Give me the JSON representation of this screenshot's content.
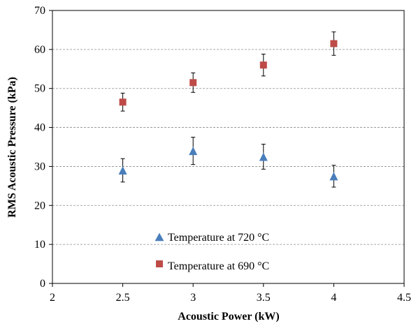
{
  "chart_data": {
    "type": "scatter",
    "title": "",
    "xlabel": "Acoustic Power (kW)",
    "ylabel": "RMS Acoustic Pressure (kPa)",
    "xlim": [
      2,
      4.5
    ],
    "ylim": [
      0,
      70
    ],
    "x_ticks": [
      2,
      2.5,
      3,
      3.5,
      4,
      4.5
    ],
    "x_tick_labels": [
      "2",
      "2.5",
      "3",
      "3.5",
      "4",
      "4.5"
    ],
    "y_ticks": [
      0,
      10,
      20,
      30,
      40,
      50,
      60,
      70
    ],
    "y_tick_labels": [
      "0",
      "10",
      "20",
      "30",
      "40",
      "50",
      "60",
      "70"
    ],
    "grid": "horizontal dashed",
    "legend_position": "lower-middle",
    "series": [
      {
        "name": "Temperature at 720 °C",
        "marker": "triangle",
        "color": "#4a7ebb",
        "x": [
          2.5,
          3,
          3.5,
          4
        ],
        "y": [
          29,
          34,
          32.5,
          27.5
        ],
        "error": [
          3,
          3.5,
          3.2,
          2.8
        ]
      },
      {
        "name": "Temperature at 690 °C",
        "marker": "square",
        "color": "#be4b48",
        "x": [
          2.5,
          3,
          3.5,
          4
        ],
        "y": [
          46.5,
          51.5,
          56,
          61.5
        ],
        "error": [
          2.3,
          2.5,
          2.8,
          3
        ]
      }
    ]
  }
}
